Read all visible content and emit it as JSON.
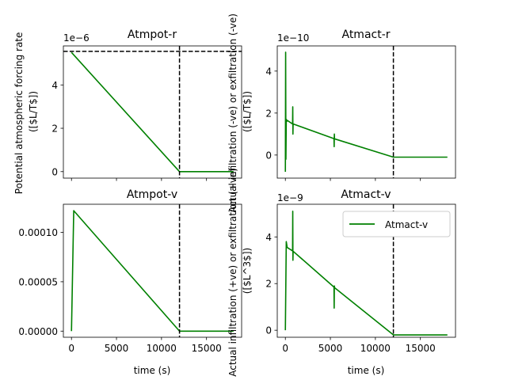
{
  "figure": {
    "background": "#ffffff"
  },
  "chart_data": [
    {
      "id": "atmpot-r",
      "type": "line",
      "title": "Atmpot-r",
      "xlabel": "",
      "ylabel_lines": [
        "Potential atmospheric forcing rate",
        "([$L/T$])"
      ],
      "offset_text": "1e−6",
      "xlim": [
        -900,
        18900
      ],
      "ylim": [
        -0.3,
        5.8
      ],
      "x_ticks": [
        0,
        5000,
        10000,
        15000
      ],
      "x_tick_labels": [],
      "y_ticks": [
        0,
        2,
        4
      ],
      "y_tick_labels": [
        "0",
        "2",
        "4"
      ],
      "vline_x": 12000,
      "hline_y": 5.55,
      "series": [
        {
          "color": "#008000",
          "x": [
            0,
            12000,
            18000
          ],
          "y": [
            5.5,
            0,
            0
          ]
        }
      ]
    },
    {
      "id": "atmact-r",
      "type": "line",
      "title": "Atmact-r",
      "xlabel": "",
      "ylabel_lines": [
        "Actual infiltration (-ve) or exfiltration (-ve)",
        "([$L/T$])"
      ],
      "offset_text": "1e−10",
      "xlim": [
        -900,
        18900
      ],
      "ylim": [
        -1.1,
        5.2
      ],
      "x_ticks": [
        0,
        5000,
        10000,
        15000
      ],
      "x_tick_labels": [],
      "y_ticks": [
        0,
        2,
        4
      ],
      "y_tick_labels": [
        "0",
        "2",
        "4"
      ],
      "vline_x": 12000,
      "series": [
        {
          "color": "#008000",
          "x": [
            0,
            30,
            60,
            100,
            150,
            200,
            210,
            800,
            820,
            840,
            860,
            880,
            5400,
            5420,
            5440,
            5460,
            5480,
            12000,
            18000
          ],
          "y": [
            -0.8,
            4.9,
            -0.2,
            1.7,
            1.6,
            1.65,
            1.65,
            1.48,
            2.3,
            1.0,
            1.48,
            1.48,
            0.78,
            0.4,
            1.0,
            0.78,
            0.77,
            -0.1,
            -0.1
          ]
        }
      ]
    },
    {
      "id": "atmpot-v",
      "type": "line",
      "title": "Atmpot-v",
      "xlabel": "time (s)",
      "ylabel_lines": [],
      "offset_text": "",
      "xlim": [
        -900,
        18900
      ],
      "ylim": [
        -6.2e-06,
        0.0001285
      ],
      "x_ticks": [
        0,
        5000,
        10000,
        15000
      ],
      "x_tick_labels": [
        "0",
        "5000",
        "10000",
        "15000"
      ],
      "y_ticks": [
        0,
        5e-05,
        0.0001
      ],
      "y_tick_labels": [
        "0.00000",
        "0.00005",
        "0.00010"
      ],
      "vline_x": 12000,
      "series": [
        {
          "color": "#008000",
          "x": [
            0,
            250,
            12000,
            18000
          ],
          "y": [
            0,
            0.000122,
            0,
            0
          ]
        }
      ]
    },
    {
      "id": "atmact-v",
      "type": "line",
      "title": "Atmact-v",
      "xlabel": "time (s)",
      "ylabel_lines": [
        "Actual infiltration (+ve) or exfiltration (+ve)",
        "([$L^3$])"
      ],
      "offset_text": "1e−9",
      "xlim": [
        -900,
        18900
      ],
      "ylim": [
        -0.3,
        5.4
      ],
      "x_ticks": [
        0,
        5000,
        10000,
        15000
      ],
      "x_tick_labels": [
        "0",
        "5000",
        "10000",
        "15000"
      ],
      "y_ticks": [
        0,
        2,
        4
      ],
      "y_tick_labels": [
        "0",
        "2",
        "4"
      ],
      "vline_x": 12000,
      "legend": {
        "label": "Atmact-v",
        "color": "#008000",
        "position": "upper right"
      },
      "series": [
        {
          "color": "#008000",
          "x": [
            0,
            100,
            200,
            800,
            820,
            840,
            860,
            880,
            5400,
            5420,
            5440,
            5460,
            5480,
            12000,
            18000
          ],
          "y": [
            0,
            3.8,
            3.55,
            3.4,
            5.1,
            3.0,
            3.38,
            3.38,
            1.85,
            0.95,
            1.9,
            1.84,
            1.82,
            -0.2,
            -0.2
          ]
        }
      ]
    }
  ]
}
